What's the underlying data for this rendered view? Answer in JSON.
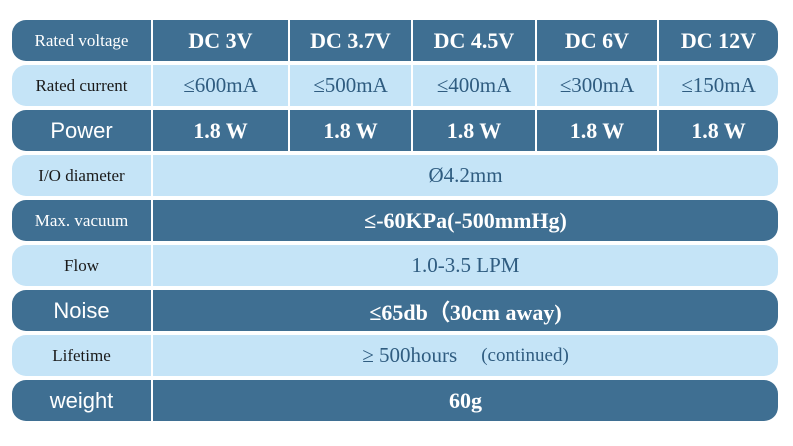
{
  "rows": {
    "voltage": {
      "label": "Rated voltage",
      "values": [
        "DC 3V",
        "DC 3.7V",
        "DC 4.5V",
        "DC 6V",
        "DC 12V"
      ]
    },
    "current": {
      "label": "Rated current",
      "values": [
        "≤600mA",
        "≤500mA",
        "≤400mA",
        "≤300mA",
        "≤150mA"
      ]
    },
    "power": {
      "label": "Power",
      "values": [
        "1.8 W",
        "1.8 W",
        "1.8 W",
        "1.8 W",
        "1.8 W"
      ]
    },
    "io_diameter": {
      "label": "I/O diameter",
      "value": "Ø4.2mm"
    },
    "vacuum": {
      "label": "Max. vacuum",
      "value": "≤-60KPa(-500mmHg)"
    },
    "flow": {
      "label": "Flow",
      "value": "1.0-3.5 LPM"
    },
    "noise": {
      "label": "Noise",
      "value": "≤65db（30cm away)"
    },
    "lifetime": {
      "label": "Lifetime",
      "value": "≥ 500hours",
      "note": "(continued)"
    },
    "weight": {
      "label": "weight",
      "value": "60g"
    }
  },
  "colors": {
    "dark": "#3f6f92",
    "light": "#c5e4f7",
    "light_text": "#2f5c80"
  }
}
